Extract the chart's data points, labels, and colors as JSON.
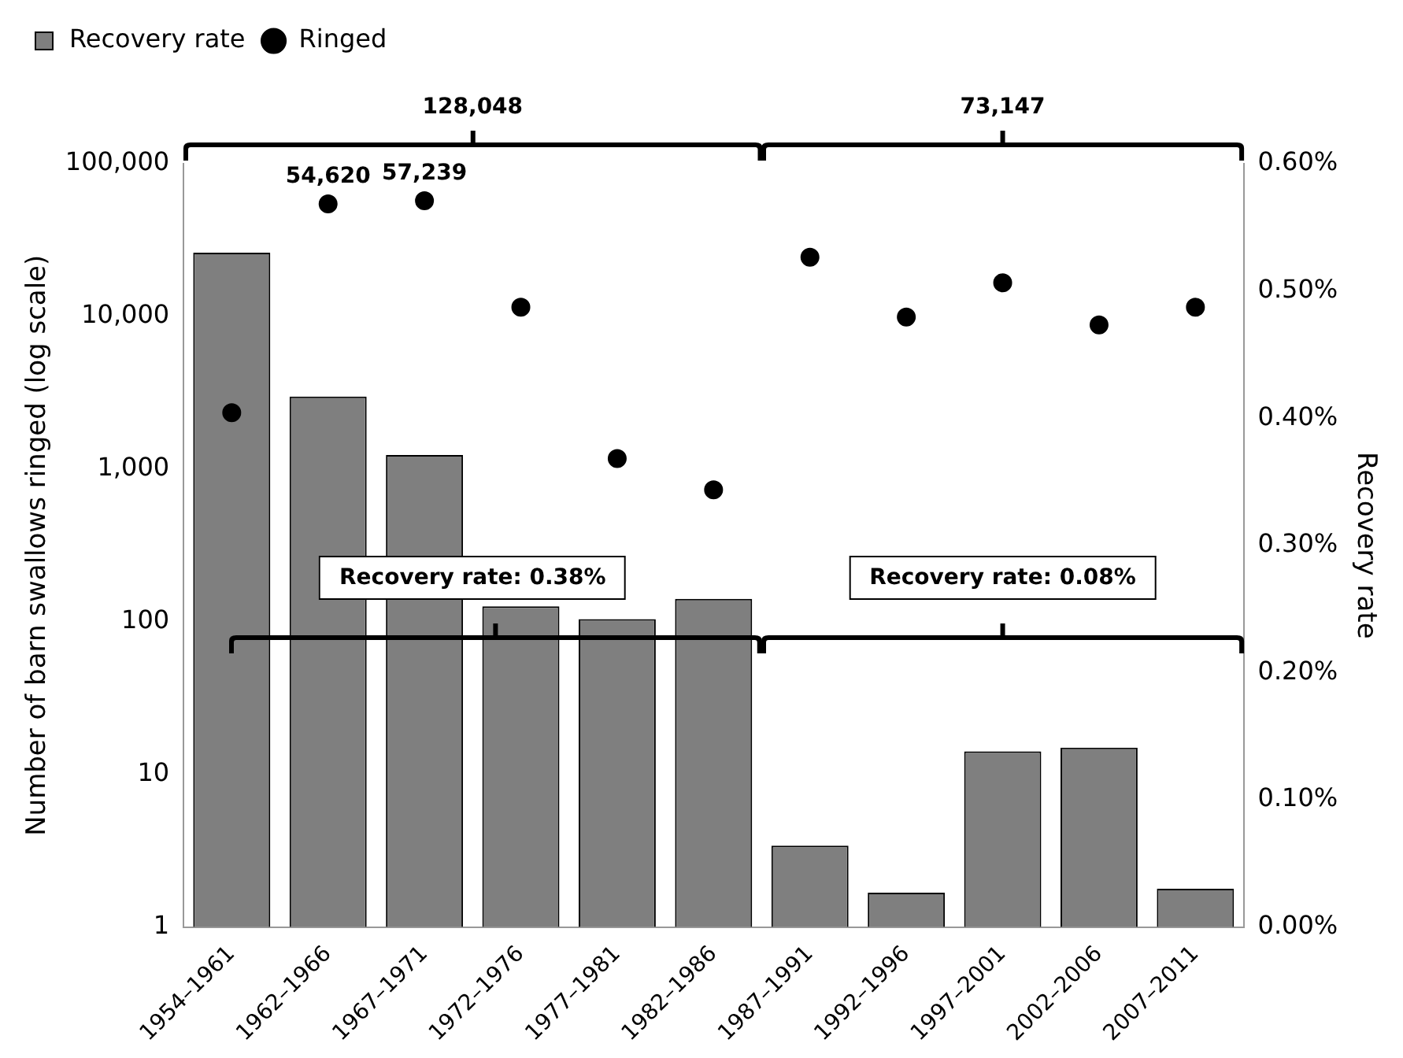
{
  "chart_data": {
    "type": "bar",
    "categories": [
      "1954–1961",
      "1962–1966",
      "1967–1971",
      "1972–1976",
      "1977–1981",
      "1982–1986",
      "1987–1991",
      "1992–1996",
      "1997–2001",
      "2002–2006",
      "2007–2011"
    ],
    "ylabel": "Number of barn swallows ringed (log scale)",
    "y2label": "Recovery rate",
    "log": "y",
    "ylim": [
      1,
      100000
    ],
    "yticks": [
      1,
      10,
      100,
      {
        "value": 1000,
        "label": "1,000"
      },
      {
        "value": 10000,
        "label": "10,000"
      },
      {
        "value": 100000,
        "label": "100,000"
      }
    ],
    "y2lim": [
      0,
      0.6
    ],
    "y2ticks": [
      {
        "value": 0,
        "label": "0.00%"
      },
      {
        "value": 0.1,
        "label": "0.10%"
      },
      {
        "value": 0.2,
        "label": "0.20%"
      },
      {
        "value": 0.3,
        "label": "0.30%"
      },
      {
        "value": 0.4,
        "label": "0.40%"
      },
      {
        "value": 0.5,
        "label": "0.50%"
      },
      {
        "value": 0.6,
        "label": "0.60%"
      }
    ],
    "legend": "top left",
    "marker": "circle",
    "series": [
      {
        "name": "Recovery rate",
        "axis": "y2",
        "color": "#7f7f7f",
        "values": [
          0.53,
          0.417,
          0.371,
          0.252,
          0.242,
          0.258,
          0.064,
          0.027,
          0.138,
          0.141,
          0.03
        ]
      },
      {
        "name": "Ringed",
        "type": "scatter",
        "color": "#000000",
        "values": [
          2340,
          54620,
          57239,
          11500,
          1170,
          730,
          24400,
          9900,
          16600,
          8800,
          11500
        ],
        "value_labels": [
          null,
          "54,620",
          "57,239",
          null,
          null,
          null,
          null,
          null,
          null,
          null,
          null
        ]
      }
    ],
    "annotations": [
      "128,048",
      "73,147",
      "Recovery rate: 0.38%",
      "Recovery rate: 0.08%"
    ]
  }
}
